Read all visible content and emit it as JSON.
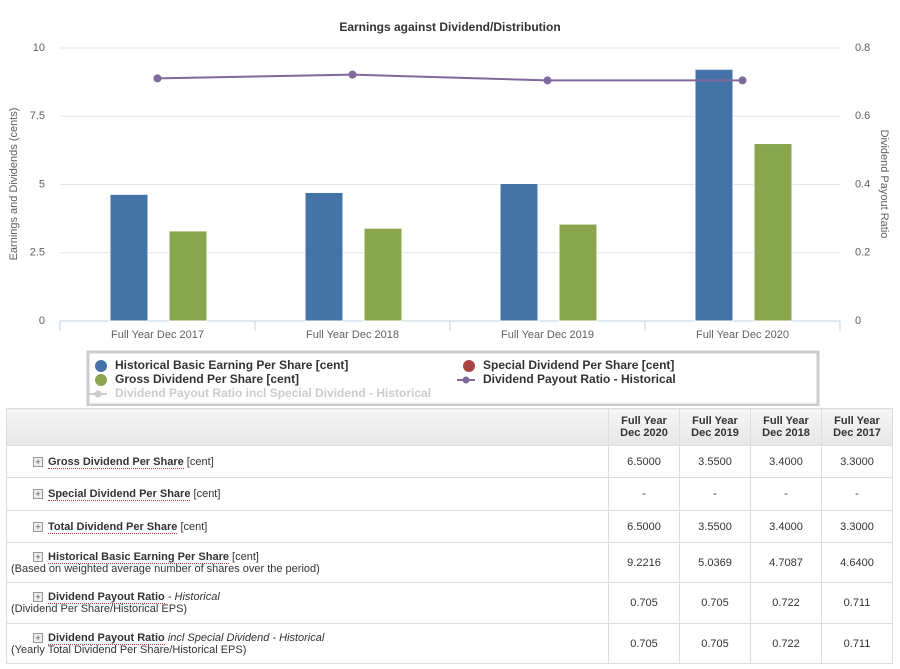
{
  "chart_data": {
    "type": "bar",
    "title": "Earnings against Dividend/Distribution",
    "y_label": "Earnings and Dividends (cents)",
    "y2_label": "Dividend Payout Ratio",
    "categories": [
      "Full Year Dec 2017",
      "Full Year Dec 2018",
      "Full Year Dec 2019",
      "Full Year Dec 2020"
    ],
    "ylim": [
      0,
      10
    ],
    "yticks": [
      0,
      2.5,
      5,
      7.5,
      10
    ],
    "y2lim": [
      0,
      0.8
    ],
    "y2ticks": [
      0,
      0.2,
      0.4,
      0.6,
      0.8
    ],
    "grid": true,
    "series": [
      {
        "name": "Historical Basic Earning Per Share [cent]",
        "color": "#4572a7",
        "kind": "bar",
        "values": [
          4.64,
          4.7087,
          5.0369,
          9.2216
        ]
      },
      {
        "name": "Gross Dividend Per Share [cent]",
        "color": "#89a54e",
        "kind": "bar",
        "values": [
          3.3,
          3.4,
          3.55,
          6.5
        ]
      },
      {
        "name": "Special Dividend Per Share [cent]",
        "color": "#aa4643",
        "kind": "bar",
        "values": [
          null,
          null,
          null,
          null
        ]
      },
      {
        "name": "Dividend Payout Ratio - Historical",
        "color": "#80699b",
        "kind": "line",
        "axis": "y2",
        "values": [
          0.711,
          0.722,
          0.705,
          0.705
        ]
      },
      {
        "name": "Dividend Payout Ratio incl Special Dividend - Historical",
        "color": "#cccccc",
        "kind": "line",
        "axis": "y2",
        "visible": false,
        "values": [
          null,
          null,
          null,
          null
        ]
      }
    ]
  },
  "table": {
    "header": [
      "Full Year Dec 2020",
      "Full Year Dec 2019",
      "Full Year Dec 2018",
      "Full Year Dec 2017"
    ],
    "rows": [
      {
        "name": "Gross Dividend Per Share",
        "unit": "[cent]",
        "cells": [
          "6.5000",
          "3.5500",
          "3.4000",
          "3.3000"
        ]
      },
      {
        "name": "Special Dividend Per Share",
        "unit": "[cent]",
        "cells": [
          "-",
          "-",
          "-",
          "-"
        ]
      },
      {
        "name": "Total Dividend Per Share",
        "unit": "[cent]",
        "cells": [
          "6.5000",
          "3.5500",
          "3.4000",
          "3.3000"
        ]
      },
      {
        "name": "Historical Basic Earning Per Share",
        "unit": "[cent]",
        "note": "(Based on weighted average number of shares over the period)",
        "cells": [
          "9.2216",
          "5.0369",
          "4.7087",
          "4.6400"
        ]
      },
      {
        "name": "Dividend Payout Ratio",
        "qualifier": "- Historical",
        "note": "(Dividend Per Share/Historical EPS)",
        "cells": [
          "0.705",
          "0.705",
          "0.722",
          "0.711"
        ]
      },
      {
        "name": "Dividend Payout Ratio",
        "qualifier": "incl Special Dividend - Historical",
        "note": "(Yearly Total Dividend Per Share/Historical EPS)",
        "cells": [
          "0.705",
          "0.705",
          "0.722",
          "0.711"
        ]
      }
    ]
  }
}
